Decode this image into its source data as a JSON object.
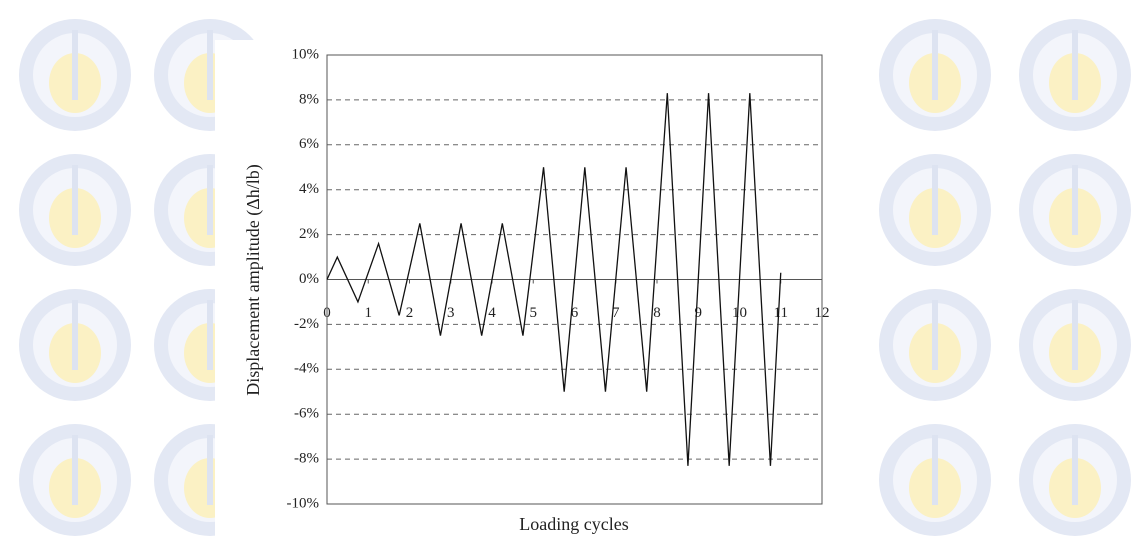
{
  "chart_data": {
    "type": "line",
    "x_label": "Loading cycles",
    "y_label": "Displacement amplitude (Δh/lb)",
    "x": [
      0,
      0.25,
      0.75,
      1.25,
      1.75,
      2.25,
      2.75,
      3.25,
      3.75,
      4.25,
      4.75,
      5.25,
      5.75,
      6.25,
      6.75,
      7.25,
      7.75,
      8.25,
      8.75,
      9.25,
      9.75,
      10.25,
      10.75,
      11
    ],
    "series": [
      {
        "color": "#111111",
        "values": [
          0,
          1,
          -1,
          1.6,
          -1.6,
          2.5,
          -2.5,
          2.5,
          -2.5,
          2.5,
          -2.5,
          5,
          -5,
          5,
          -5,
          5,
          -5,
          8.3,
          -8.3,
          8.3,
          -8.3,
          8.3,
          -8.3,
          0.3
        ]
      }
    ],
    "xlim": [
      0,
      12
    ],
    "xticks": [
      0,
      1,
      2,
      3,
      4,
      5,
      6,
      7,
      8,
      9,
      10,
      11,
      12
    ],
    "ylim": [
      -10,
      10
    ],
    "yticks": [
      {
        "value": -10,
        "label": "-10%"
      },
      {
        "value": -8,
        "label": "-8%"
      },
      {
        "value": -6,
        "label": "-6%"
      },
      {
        "value": -4,
        "label": "-4%"
      },
      {
        "value": -2,
        "label": "-2%"
      },
      {
        "value": 0,
        "label": "0%"
      },
      {
        "value": 2,
        "label": "2%"
      },
      {
        "value": 4,
        "label": "4%"
      },
      {
        "value": 6,
        "label": "6%"
      },
      {
        "value": 8,
        "label": "8%"
      },
      {
        "value": 10,
        "label": "10%"
      }
    ],
    "grid": true
  }
}
